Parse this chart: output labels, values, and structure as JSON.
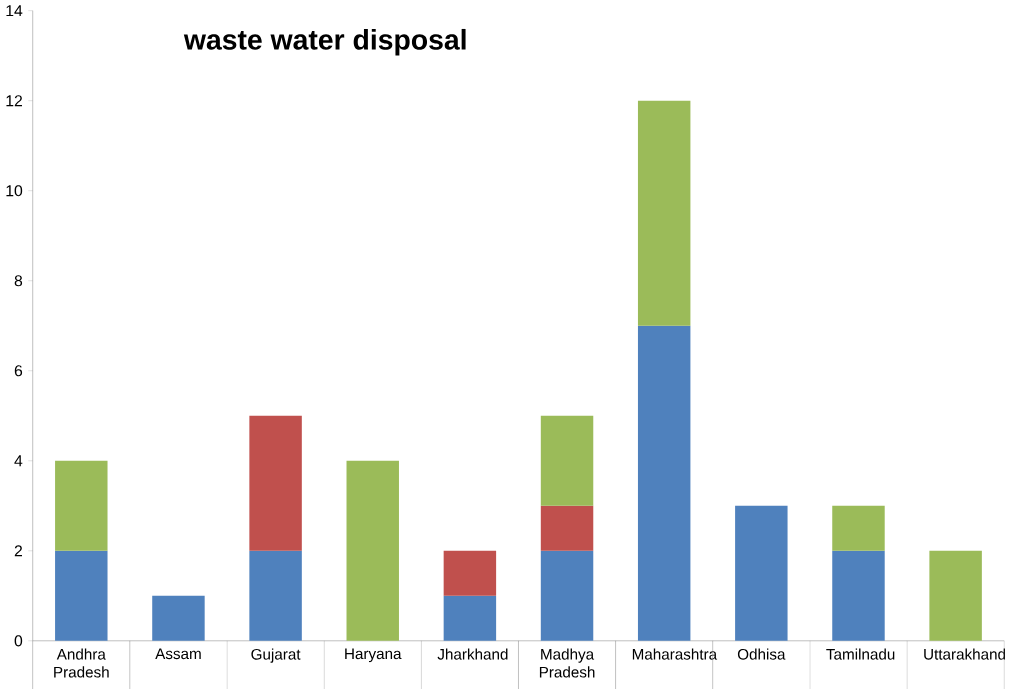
{
  "chart_data": {
    "type": "bar",
    "stacked": true,
    "title": "waste water disposal",
    "categories": [
      "Andhra Pradesh",
      "Assam",
      "Gujarat",
      "Haryana",
      "Jharkhand",
      "Madhya Pradesh",
      "Maharashtra",
      "Odhisa",
      "Tamilnadu",
      "Uttarakhand"
    ],
    "series": [
      {
        "color": "#4f81bd",
        "values": [
          2,
          1,
          2,
          null,
          1,
          2,
          7,
          3,
          2,
          null
        ]
      },
      {
        "color": "#c0504d",
        "values": [
          null,
          null,
          3,
          null,
          1,
          1,
          null,
          null,
          null,
          null
        ]
      },
      {
        "color": "#9bbb59",
        "values": [
          2,
          null,
          null,
          4,
          null,
          2,
          5,
          null,
          1,
          2
        ]
      }
    ],
    "ylim": [
      0,
      14
    ],
    "yticks": [
      0,
      2,
      4,
      6,
      8,
      10,
      12,
      14
    ],
    "grid": false
  }
}
